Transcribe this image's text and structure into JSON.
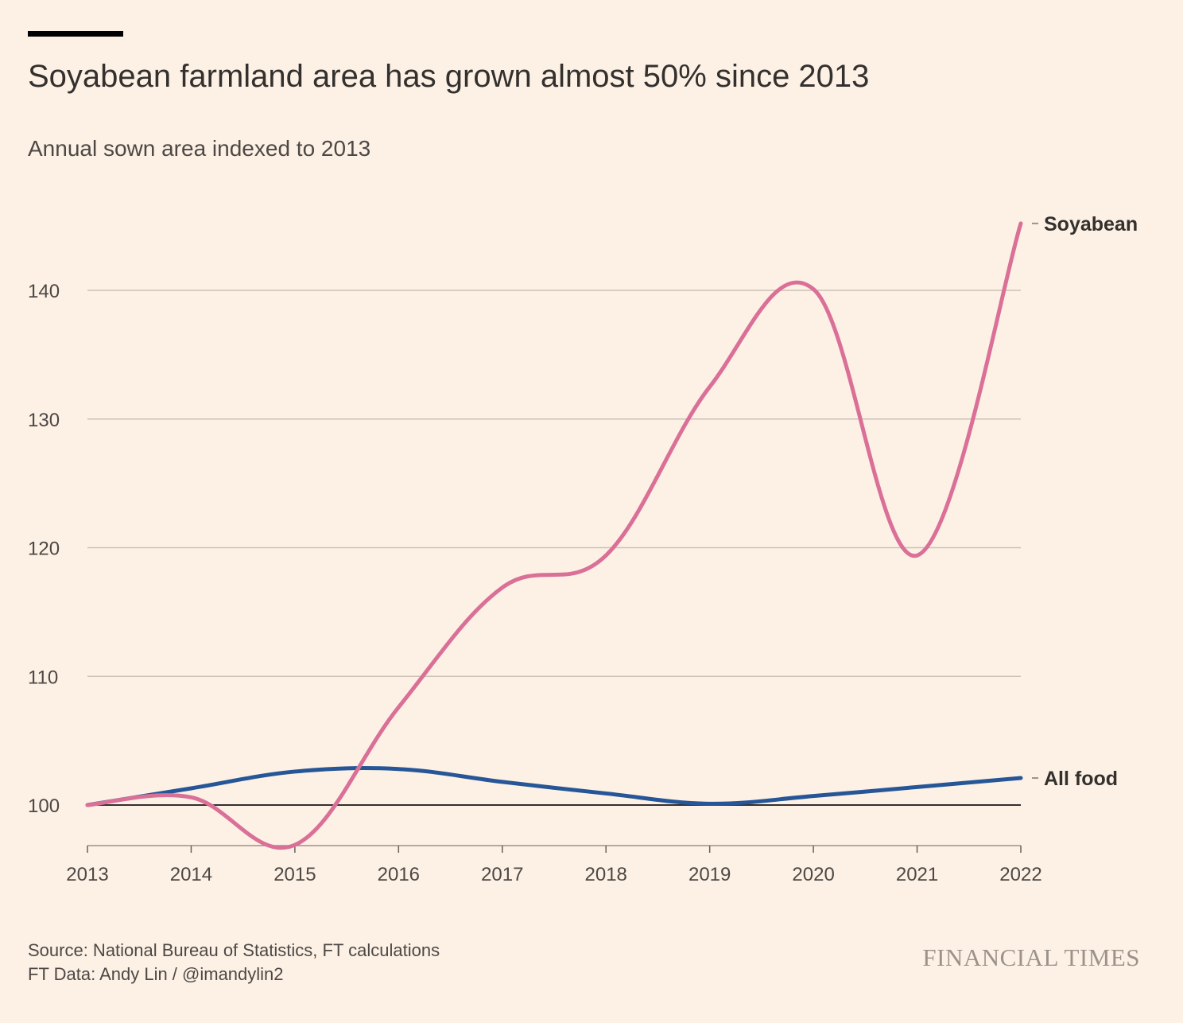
{
  "header": {
    "title": "Soyabean farmland area has grown almost 50% since 2013",
    "subtitle": "Annual sown area indexed to 2013"
  },
  "footer": {
    "source": "Source: National Bureau of Statistics, FT calculations",
    "credit": "FT Data: Andy Lin / @imandylin2",
    "brand": "FINANCIAL TIMES"
  },
  "colors": {
    "background": "#FDF1E5",
    "soyabean": "#DA7097",
    "all_food": "#265697",
    "grid": "#CCC1B7",
    "baseline": "#33302E",
    "text": "#33302E"
  },
  "chart_data": {
    "type": "line",
    "title": "Soyabean farmland area has grown almost 50% since 2013",
    "subtitle": "Annual sown area indexed to 2013",
    "xlabel": "",
    "ylabel": "",
    "x": [
      2013,
      2014,
      2015,
      2016,
      2017,
      2018,
      2019,
      2020,
      2021,
      2022
    ],
    "x_ticks": [
      "2013",
      "2014",
      "2015",
      "2016",
      "2017",
      "2018",
      "2019",
      "2020",
      "2021",
      "2022"
    ],
    "y_ticks": [
      "100",
      "110",
      "120",
      "130",
      "140"
    ],
    "ylim": [
      96.9,
      146
    ],
    "grid": true,
    "baseline": 100,
    "series": [
      {
        "name": "Soyabean",
        "color": "#DA7097",
        "values": [
          100,
          100.6,
          96.9,
          107.6,
          116.9,
          119.4,
          132.5,
          140.1,
          119.4,
          145.2
        ]
      },
      {
        "name": "All food",
        "color": "#265697",
        "values": [
          100,
          101.3,
          102.6,
          102.8,
          101.8,
          100.9,
          100.1,
          100.7,
          101.4,
          102.1
        ]
      }
    ]
  }
}
